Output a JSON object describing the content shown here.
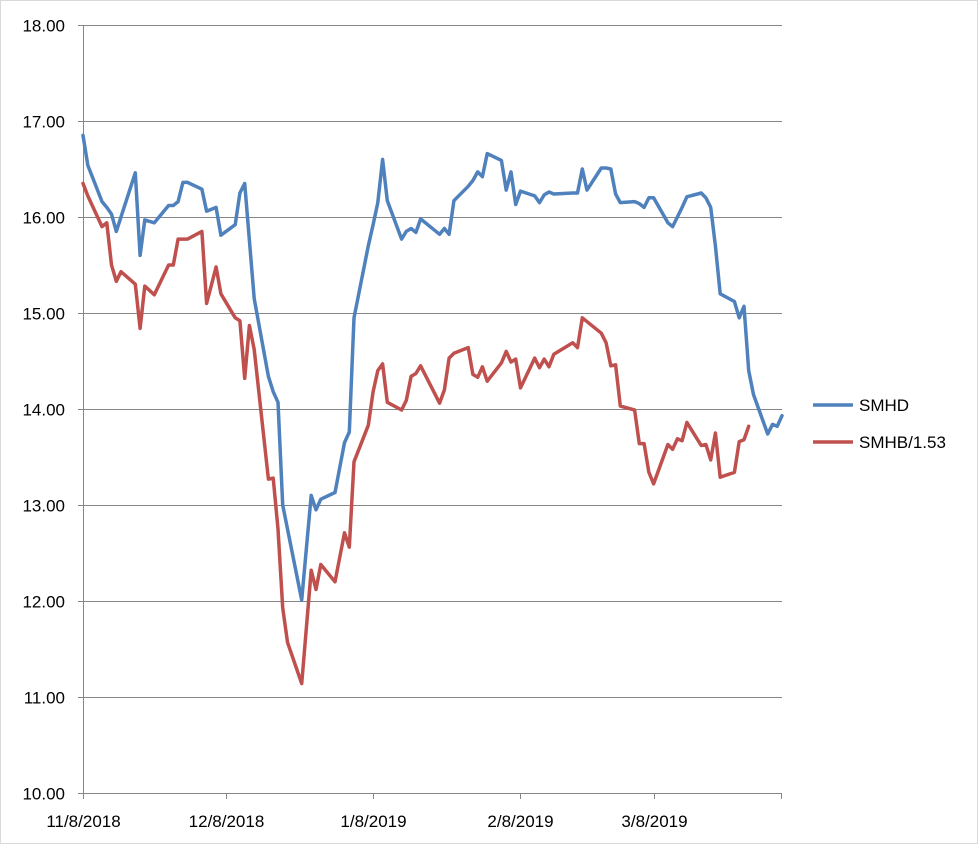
{
  "chart_data": {
    "type": "line",
    "title": "",
    "xlabel": "",
    "ylabel": "",
    "ylim": [
      10,
      18
    ],
    "y_ticks": [
      "10.00",
      "11.00",
      "12.00",
      "13.00",
      "14.00",
      "15.00",
      "16.00",
      "17.00",
      "18.00"
    ],
    "x_ticks": [
      "11/8/2018",
      "12/8/2018",
      "1/8/2019",
      "2/8/2019",
      "3/8/2019"
    ],
    "x_tick_values": [
      "2018-11-08",
      "2018-12-08",
      "2019-01-08",
      "2019-02-08",
      "2019-03-08"
    ],
    "xlim": [
      "2018-11-08",
      "2019-03-29"
    ],
    "grid": "horizontal",
    "legend_position": "right",
    "series": [
      {
        "name": "SMHD",
        "color": "#4F81BD",
        "points": [
          [
            "2018-11-08",
            16.85
          ],
          [
            "2018-11-09",
            16.54
          ],
          [
            "2018-11-12",
            16.16
          ],
          [
            "2018-11-13",
            16.1
          ],
          [
            "2018-11-14",
            16.03
          ],
          [
            "2018-11-15",
            15.85
          ],
          [
            "2018-11-19",
            16.46
          ],
          [
            "2018-11-20",
            15.6
          ],
          [
            "2018-11-21",
            15.97
          ],
          [
            "2018-11-23",
            15.94
          ],
          [
            "2018-11-26",
            16.12
          ],
          [
            "2018-11-27",
            16.12
          ],
          [
            "2018-11-28",
            16.16
          ],
          [
            "2018-11-29",
            16.36
          ],
          [
            "2018-11-30",
            16.36
          ],
          [
            "2018-12-03",
            16.29
          ],
          [
            "2018-12-04",
            16.06
          ],
          [
            "2018-12-06",
            16.1
          ],
          [
            "2018-12-07",
            15.81
          ],
          [
            "2018-12-10",
            15.92
          ],
          [
            "2018-12-11",
            16.25
          ],
          [
            "2018-12-12",
            16.35
          ],
          [
            "2018-12-14",
            15.15
          ],
          [
            "2018-12-17",
            14.34
          ],
          [
            "2018-12-18",
            14.18
          ],
          [
            "2018-12-19",
            14.07
          ],
          [
            "2018-12-20",
            13.0
          ],
          [
            "2018-12-24",
            12.01
          ],
          [
            "2018-12-26",
            13.1
          ],
          [
            "2018-12-27",
            12.95
          ],
          [
            "2018-12-28",
            13.06
          ],
          [
            "2018-12-31",
            13.13
          ],
          [
            "2019-01-02",
            13.65
          ],
          [
            "2019-01-03",
            13.76
          ],
          [
            "2019-01-04",
            14.95
          ],
          [
            "2019-01-07",
            15.7
          ],
          [
            "2019-01-08",
            15.92
          ],
          [
            "2019-01-09",
            16.15
          ],
          [
            "2019-01-10",
            16.6
          ],
          [
            "2019-01-11",
            16.17
          ],
          [
            "2019-01-14",
            15.77
          ],
          [
            "2019-01-15",
            15.85
          ],
          [
            "2019-01-16",
            15.88
          ],
          [
            "2019-01-17",
            15.84
          ],
          [
            "2019-01-18",
            15.98
          ],
          [
            "2019-01-22",
            15.82
          ],
          [
            "2019-01-23",
            15.88
          ],
          [
            "2019-01-24",
            15.82
          ],
          [
            "2019-01-25",
            16.17
          ],
          [
            "2019-01-28",
            16.32
          ],
          [
            "2019-01-29",
            16.38
          ],
          [
            "2019-01-30",
            16.47
          ],
          [
            "2019-01-31",
            16.42
          ],
          [
            "2019-02-01",
            16.66
          ],
          [
            "2019-02-04",
            16.59
          ],
          [
            "2019-02-05",
            16.28
          ],
          [
            "2019-02-06",
            16.47
          ],
          [
            "2019-02-07",
            16.13
          ],
          [
            "2019-02-08",
            16.27
          ],
          [
            "2019-02-11",
            16.22
          ],
          [
            "2019-02-12",
            16.15
          ],
          [
            "2019-02-13",
            16.23
          ],
          [
            "2019-02-14",
            16.26
          ],
          [
            "2019-02-15",
            16.24
          ],
          [
            "2019-02-19",
            16.25
          ],
          [
            "2019-02-20",
            16.25
          ],
          [
            "2019-02-21",
            16.5
          ],
          [
            "2019-02-22",
            16.28
          ],
          [
            "2019-02-25",
            16.51
          ],
          [
            "2019-02-26",
            16.51
          ],
          [
            "2019-02-27",
            16.5
          ],
          [
            "2019-02-28",
            16.24
          ],
          [
            "2019-03-01",
            16.15
          ],
          [
            "2019-03-04",
            16.16
          ],
          [
            "2019-03-05",
            16.14
          ],
          [
            "2019-03-06",
            16.1
          ],
          [
            "2019-03-07",
            16.2
          ],
          [
            "2019-03-08",
            16.2
          ],
          [
            "2019-03-11",
            15.94
          ],
          [
            "2019-03-12",
            15.9
          ],
          [
            "2019-03-13",
            16.0
          ],
          [
            "2019-03-14",
            16.1
          ],
          [
            "2019-03-15",
            16.21
          ],
          [
            "2019-03-18",
            16.25
          ],
          [
            "2019-03-19",
            16.2
          ],
          [
            "2019-03-20",
            16.1
          ],
          [
            "2019-03-21",
            15.7
          ],
          [
            "2019-03-22",
            15.2
          ],
          [
            "2019-03-25",
            15.12
          ],
          [
            "2019-03-26",
            14.95
          ],
          [
            "2019-03-27",
            15.07
          ],
          [
            "2019-03-28",
            14.4
          ],
          [
            "2019-03-29",
            14.15
          ],
          [
            "2019-04-01",
            13.74
          ],
          [
            "2019-04-02",
            13.84
          ],
          [
            "2019-04-03",
            13.82
          ],
          [
            "2019-04-04",
            13.93
          ]
        ]
      },
      {
        "name": "SMHB/1.53",
        "color": "#C0504D",
        "points": [
          [
            "2018-11-08",
            16.35
          ],
          [
            "2018-11-09",
            16.22
          ],
          [
            "2018-11-12",
            15.9
          ],
          [
            "2018-11-13",
            15.94
          ],
          [
            "2018-11-14",
            15.5
          ],
          [
            "2018-11-15",
            15.33
          ],
          [
            "2018-11-16",
            15.43
          ],
          [
            "2018-11-19",
            15.3
          ],
          [
            "2018-11-20",
            14.84
          ],
          [
            "2018-11-21",
            15.28
          ],
          [
            "2018-11-23",
            15.19
          ],
          [
            "2018-11-26",
            15.5
          ],
          [
            "2018-11-27",
            15.5
          ],
          [
            "2018-11-28",
            15.77
          ],
          [
            "2018-11-29",
            15.77
          ],
          [
            "2018-11-30",
            15.77
          ],
          [
            "2018-12-03",
            15.85
          ],
          [
            "2018-12-04",
            15.1
          ],
          [
            "2018-12-06",
            15.48
          ],
          [
            "2018-12-07",
            15.2
          ],
          [
            "2018-12-10",
            14.95
          ],
          [
            "2018-12-11",
            14.92
          ],
          [
            "2018-12-12",
            14.32
          ],
          [
            "2018-12-13",
            14.87
          ],
          [
            "2018-12-14",
            14.62
          ],
          [
            "2018-12-17",
            13.27
          ],
          [
            "2018-12-18",
            13.28
          ],
          [
            "2018-12-19",
            12.75
          ],
          [
            "2018-12-20",
            11.93
          ],
          [
            "2018-12-21",
            11.57
          ],
          [
            "2018-12-24",
            11.14
          ],
          [
            "2018-12-26",
            12.32
          ],
          [
            "2018-12-27",
            12.12
          ],
          [
            "2018-12-28",
            12.38
          ],
          [
            "2018-12-31",
            12.2
          ],
          [
            "2019-01-02",
            12.71
          ],
          [
            "2019-01-03",
            12.56
          ],
          [
            "2019-01-04",
            13.45
          ],
          [
            "2019-01-07",
            13.83
          ],
          [
            "2019-01-08",
            14.18
          ],
          [
            "2019-01-09",
            14.4
          ],
          [
            "2019-01-10",
            14.47
          ],
          [
            "2019-01-11",
            14.07
          ],
          [
            "2019-01-14",
            13.99
          ],
          [
            "2019-01-15",
            14.09
          ],
          [
            "2019-01-16",
            14.34
          ],
          [
            "2019-01-17",
            14.37
          ],
          [
            "2019-01-18",
            14.45
          ],
          [
            "2019-01-22",
            14.06
          ],
          [
            "2019-01-23",
            14.2
          ],
          [
            "2019-01-24",
            14.53
          ],
          [
            "2019-01-25",
            14.58
          ],
          [
            "2019-01-28",
            14.64
          ],
          [
            "2019-01-29",
            14.36
          ],
          [
            "2019-01-30",
            14.33
          ],
          [
            "2019-01-31",
            14.44
          ],
          [
            "2019-02-01",
            14.29
          ],
          [
            "2019-02-04",
            14.48
          ],
          [
            "2019-02-05",
            14.6
          ],
          [
            "2019-02-06",
            14.49
          ],
          [
            "2019-02-07",
            14.52
          ],
          [
            "2019-02-08",
            14.22
          ],
          [
            "2019-02-11",
            14.53
          ],
          [
            "2019-02-12",
            14.43
          ],
          [
            "2019-02-13",
            14.52
          ],
          [
            "2019-02-14",
            14.44
          ],
          [
            "2019-02-15",
            14.57
          ],
          [
            "2019-02-19",
            14.69
          ],
          [
            "2019-02-20",
            14.64
          ],
          [
            "2019-02-21",
            14.95
          ],
          [
            "2019-02-25",
            14.79
          ],
          [
            "2019-02-26",
            14.69
          ],
          [
            "2019-02-27",
            14.45
          ],
          [
            "2019-02-28",
            14.46
          ],
          [
            "2019-03-01",
            14.03
          ],
          [
            "2019-03-04",
            13.99
          ],
          [
            "2019-03-05",
            13.64
          ],
          [
            "2019-03-06",
            13.64
          ],
          [
            "2019-03-07",
            13.34
          ],
          [
            "2019-03-08",
            13.22
          ],
          [
            "2019-03-11",
            13.63
          ],
          [
            "2019-03-12",
            13.58
          ],
          [
            "2019-03-13",
            13.69
          ],
          [
            "2019-03-14",
            13.67
          ],
          [
            "2019-03-15",
            13.86
          ],
          [
            "2019-03-18",
            13.62
          ],
          [
            "2019-03-19",
            13.63
          ],
          [
            "2019-03-20",
            13.47
          ],
          [
            "2019-03-21",
            13.75
          ],
          [
            "2019-03-22",
            13.29
          ],
          [
            "2019-03-25",
            13.34
          ],
          [
            "2019-03-26",
            13.66
          ],
          [
            "2019-03-27",
            13.68
          ],
          [
            "2019-03-28",
            13.82
          ]
        ]
      }
    ]
  }
}
